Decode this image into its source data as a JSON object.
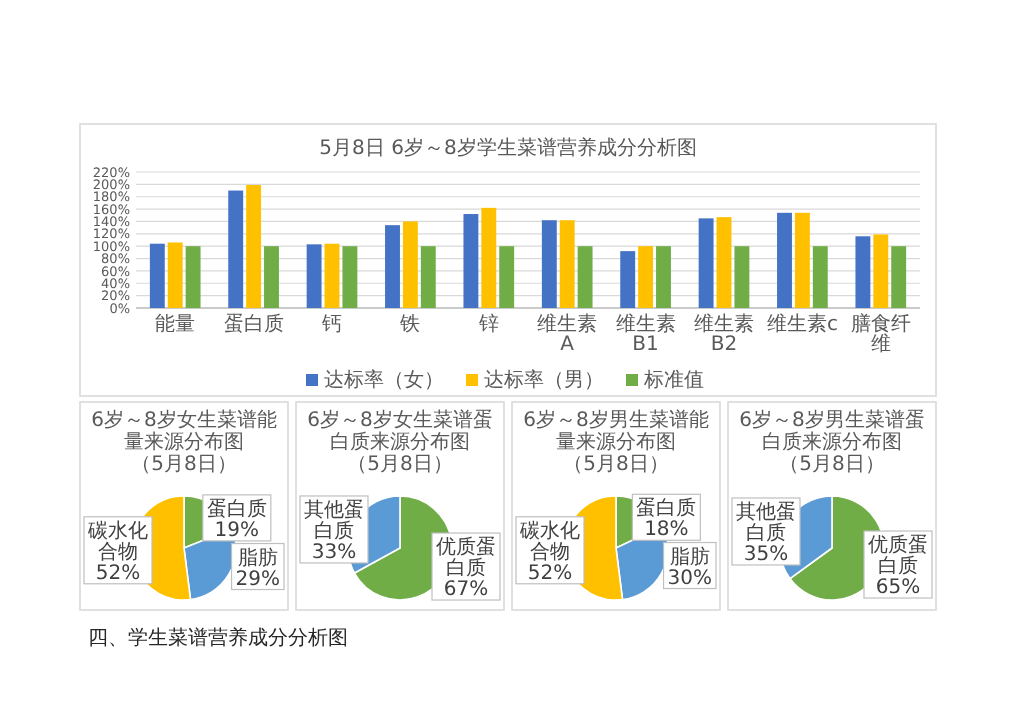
{
  "chart_data": [
    {
      "type": "bar",
      "title": "5月8日 6岁～8岁学生菜谱营养成分分析图",
      "categories": [
        "能量",
        "蛋白质",
        "钙",
        "铁",
        "锌",
        "维生素A",
        "维生素B1",
        "维生素B2",
        "维生素c",
        "膳食纤维"
      ],
      "series": [
        {
          "name": "达标率（女）",
          "color": "#4472c4",
          "values": [
            104,
            190,
            103,
            134,
            152,
            142,
            92,
            145,
            154,
            116
          ]
        },
        {
          "name": "达标率（男）",
          "color": "#ffc000",
          "values": [
            106,
            199,
            104,
            140,
            162,
            142,
            100,
            147,
            154,
            119
          ]
        },
        {
          "name": "标准值",
          "color": "#70ad47",
          "values": [
            100,
            100,
            100,
            100,
            100,
            100,
            100,
            100,
            100,
            100
          ]
        }
      ],
      "ylim": [
        0,
        220
      ],
      "yticks": [
        {
          "value": 0,
          "label": "0%"
        },
        {
          "value": 20,
          "label": "20%"
        },
        {
          "value": 40,
          "label": "40%"
        },
        {
          "value": 60,
          "label": "60%"
        },
        {
          "value": 80,
          "label": "80%"
        },
        {
          "value": 100,
          "label": "100%"
        },
        {
          "value": 120,
          "label": "120%"
        },
        {
          "value": 140,
          "label": "140%"
        },
        {
          "value": 160,
          "label": "160%"
        },
        {
          "value": 180,
          "label": "180%"
        },
        {
          "value": 200,
          "label": "200%"
        },
        {
          "value": 220,
          "label": "220%"
        }
      ],
      "grid": "y",
      "legend": "bottom"
    },
    {
      "type": "pie",
      "title": "6岁～8岁女生菜谱能量来源分布图",
      "subtitle": "（5月8日）",
      "categories": [
        "蛋白质",
        "脂肪",
        "碳水化合物"
      ],
      "values": [
        19,
        29,
        52
      ],
      "value_labels": [
        "19%",
        "29%",
        "52%"
      ],
      "colors": [
        "#70ad47",
        "#5b9bd5",
        "#ffc000"
      ]
    },
    {
      "type": "pie",
      "title": "6岁～8岁女生菜谱蛋白质来源分布图",
      "subtitle": "（5月8日）",
      "categories": [
        "优质蛋白质",
        "其他蛋白质"
      ],
      "values": [
        67,
        33
      ],
      "value_labels": [
        "67%",
        "33%"
      ],
      "colors": [
        "#70ad47",
        "#5b9bd5"
      ]
    },
    {
      "type": "pie",
      "title": "6岁～8岁男生菜谱能量来源分布图",
      "subtitle": "（5月8日）",
      "categories": [
        "蛋白质",
        "脂肪",
        "碳水化合物"
      ],
      "values": [
        18,
        30,
        52
      ],
      "value_labels": [
        "18%",
        "30%",
        "52%"
      ],
      "colors": [
        "#70ad47",
        "#5b9bd5",
        "#ffc000"
      ]
    },
    {
      "type": "pie",
      "title": "6岁～8岁男生菜谱蛋白质来源分布图",
      "subtitle": "（5月8日）",
      "categories": [
        "优质蛋白质",
        "其他蛋白质"
      ],
      "values": [
        65,
        35
      ],
      "value_labels": [
        "65%",
        "35%"
      ],
      "colors": [
        "#70ad47",
        "#5b9bd5"
      ],
      "annotations": [
        "四、学生菜谱营养成分分析图"
      ]
    }
  ]
}
